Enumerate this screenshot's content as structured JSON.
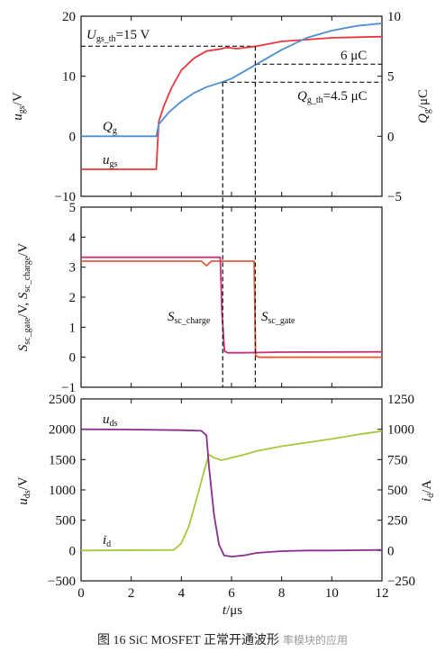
{
  "figure": {
    "caption": "图 16  SiC MOSFET 正常开通波形",
    "watermark": "率模块的应用"
  },
  "chart_data": [
    {
      "type": "line",
      "panel": "top",
      "xlim": [
        0,
        12
      ],
      "ylim": [
        -10,
        20
      ],
      "y2lim": [
        -5,
        10
      ],
      "yticks": [
        -10,
        0,
        10,
        20
      ],
      "y2ticks": [
        -5,
        0,
        5,
        10
      ],
      "ylabel": "u_gs/V",
      "y2label": "Q_g/μC",
      "series": [
        {
          "name": "u_gs",
          "axis": "left",
          "color": "#e8383d",
          "x": [
            0,
            3.0,
            3.1,
            3.3,
            3.6,
            4.0,
            4.5,
            5.0,
            5.5,
            5.8,
            6.2,
            6.6,
            7.0,
            8.0,
            9.0,
            10.0,
            11.0,
            12.0
          ],
          "y": [
            -5.5,
            -5.5,
            2.5,
            5.0,
            8.0,
            11.0,
            13.0,
            14.2,
            14.5,
            14.8,
            14.6,
            14.8,
            15.0,
            15.8,
            16.1,
            16.4,
            16.5,
            16.6
          ]
        },
        {
          "name": "Q_g",
          "axis": "right",
          "color": "#4d8ed1",
          "x": [
            0,
            3.0,
            3.1,
            3.5,
            4.0,
            4.5,
            5.0,
            5.6,
            6.0,
            6.5,
            7.0,
            8.0,
            9.0,
            10.0,
            11.0,
            12.0
          ],
          "y": [
            0,
            0,
            1.0,
            2.0,
            2.9,
            3.6,
            4.1,
            4.5,
            4.8,
            5.4,
            6.0,
            7.2,
            8.2,
            8.8,
            9.2,
            9.4
          ]
        }
      ],
      "annotations": [
        {
          "text": "U",
          "sub": "gs_th",
          "rest": "=15 V"
        },
        {
          "text": "6 μC"
        },
        {
          "text": "Q",
          "sub": "g_th",
          "rest": "=4.5 μC"
        },
        {
          "text": "Q",
          "sub": "g",
          "rest": ""
        },
        {
          "text": "u",
          "sub": "gs",
          "rest": ""
        }
      ],
      "ref_lines": {
        "u_gs_th": 15,
        "q_6": 6,
        "q_th": 4.5,
        "t_charge": 5.65,
        "t_gate": 6.95
      }
    },
    {
      "type": "line",
      "panel": "middle",
      "xlim": [
        0,
        12
      ],
      "ylim": [
        -1,
        5
      ],
      "yticks": [
        -1,
        0,
        1,
        2,
        3,
        4,
        5
      ],
      "ylabel": "S_sc_gate/V, S_sc_charge/V",
      "series": [
        {
          "name": "S_sc_gate",
          "color": "#e55a3a",
          "x": [
            0,
            4.8,
            5.0,
            5.2,
            5.65,
            6.9,
            6.96,
            7.1,
            8.0,
            12.0
          ],
          "y": [
            3.2,
            3.2,
            3.05,
            3.2,
            3.2,
            3.2,
            0.05,
            0.0,
            0.0,
            0.0
          ]
        },
        {
          "name": "S_sc_charge",
          "color": "#c8327a",
          "x": [
            0,
            5.55,
            5.62,
            5.72,
            5.85,
            6.5,
            8.0,
            12.0
          ],
          "y": [
            3.33,
            3.33,
            1.5,
            0.2,
            0.15,
            0.15,
            0.17,
            0.18
          ]
        }
      ],
      "labels": [
        {
          "text": "S",
          "sub": "sc_charge"
        },
        {
          "text": "S",
          "sub": "sc_gate"
        }
      ]
    },
    {
      "type": "line",
      "panel": "bottom",
      "xlim": [
        0,
        12
      ],
      "ylim": [
        -500,
        2500
      ],
      "y2lim": [
        -250,
        1250
      ],
      "yticks": [
        -500,
        0,
        500,
        1000,
        1500,
        2000,
        2500
      ],
      "y2ticks": [
        -250,
        0,
        250,
        500,
        750,
        1000,
        1250
      ],
      "xticks": [
        0,
        2,
        4,
        6,
        8,
        10,
        12
      ],
      "xlabel": "t/μs",
      "ylabel": "u_ds/V",
      "y2label": "i_d/A",
      "series": [
        {
          "name": "u_ds",
          "axis": "left",
          "color": "#8a2d8f",
          "x": [
            0,
            2.0,
            4.0,
            4.8,
            5.0,
            5.1,
            5.3,
            5.5,
            5.7,
            6.0,
            6.5,
            7.0,
            8.0,
            9.0,
            10.0,
            11.0,
            12.0
          ],
          "y": [
            2000,
            1995,
            1985,
            1975,
            1900,
            1400,
            600,
            100,
            -80,
            -100,
            -80,
            -40,
            -10,
            0,
            0,
            5,
            10
          ]
        },
        {
          "name": "i_d",
          "axis": "right",
          "color": "#a6c83c",
          "x": [
            0,
            3.7,
            4.0,
            4.3,
            4.6,
            4.9,
            5.1,
            5.3,
            5.6,
            6.0,
            6.5,
            7.0,
            8.0,
            9.0,
            10.0,
            11.0,
            12.0
          ],
          "y": [
            0,
            5,
            60,
            200,
            420,
            650,
            790,
            765,
            745,
            765,
            790,
            820,
            860,
            890,
            920,
            955,
            985
          ]
        }
      ],
      "labels": [
        {
          "text": "u",
          "sub": "ds"
        },
        {
          "text": "i",
          "sub": "d"
        }
      ]
    }
  ]
}
